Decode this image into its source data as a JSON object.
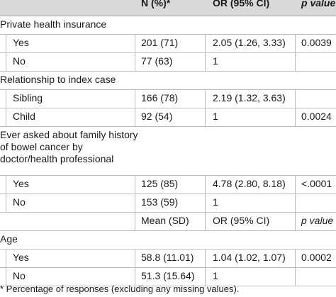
{
  "header": {
    "col_n": "N (%)*",
    "col_or": "OR (95% CI)",
    "col_p": "p value"
  },
  "sections": {
    "insurance": {
      "label": "Private health insurance",
      "rows": [
        {
          "label": "Yes",
          "n": "201 (71)",
          "or": "2.05 (1.26, 3.33)",
          "p": "0.0039"
        },
        {
          "label": "No",
          "n": "77 (63)",
          "or": "1",
          "p": ""
        }
      ]
    },
    "relationship": {
      "label": "Relationship to index case",
      "rows": [
        {
          "label": "Sibling",
          "n": "166 (78)",
          "or": "2.19 (1.32, 3.63)",
          "p": ""
        },
        {
          "label": "Child",
          "n": "92 (54)",
          "or": "1",
          "p": "0.0024"
        }
      ]
    },
    "asked": {
      "label": "Ever asked about family history of bowel cancer by doctor/health professional",
      "rows": [
        {
          "label": "Yes",
          "n": "125 (85)",
          "or": "4.78 (2.80, 8.18)",
          "p": "<.0001"
        },
        {
          "label": "No",
          "n": "153 (59)",
          "or": "1",
          "p": ""
        }
      ]
    },
    "subheader": {
      "mean": "Mean (SD)",
      "or": "OR (95% CI)",
      "p": "p value"
    },
    "age": {
      "label": "Age",
      "rows": [
        {
          "label": "Yes",
          "n": "58.8 (11.01)",
          "or": "1.04 (1.02, 1.07)",
          "p": "0.0002"
        },
        {
          "label": "No",
          "n": "51.3 (15.64)",
          "or": "1",
          "p": ""
        }
      ]
    }
  },
  "footnote": "* Percentage of responses (excluding any missing values)."
}
